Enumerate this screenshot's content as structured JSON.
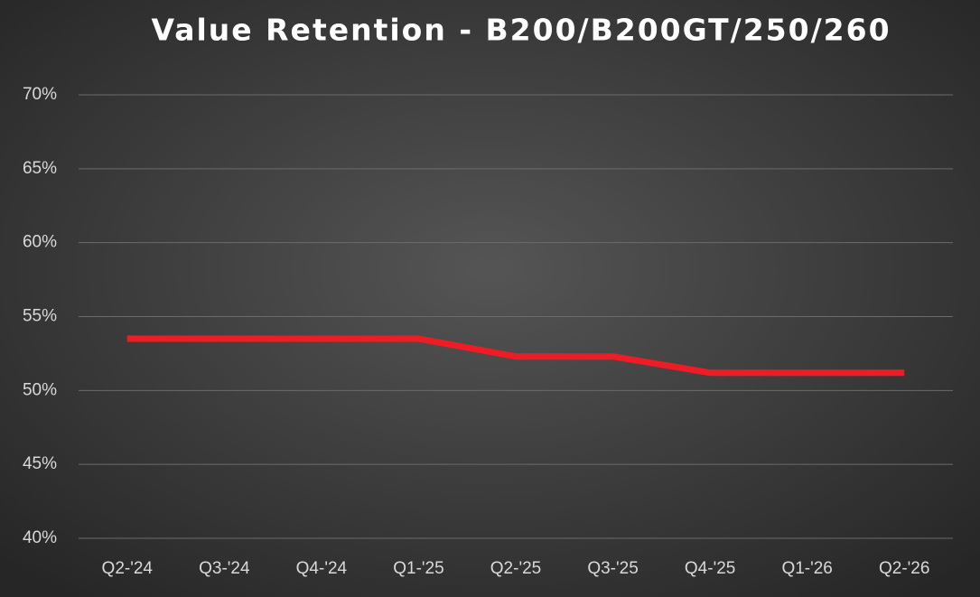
{
  "chart_data": {
    "type": "line",
    "title": "Value Retention - B200/B200GT/250/260",
    "categories": [
      "Q2-'24",
      "Q3-'24",
      "Q4-'24",
      "Q1-'25",
      "Q2-'25",
      "Q3-'25",
      "Q4-'25",
      "Q1-'26",
      "Q2-'26"
    ],
    "series": [
      {
        "name": "Value Retention",
        "color": "#ee1c25",
        "values": [
          53.5,
          53.5,
          53.5,
          53.5,
          52.3,
          52.3,
          51.2,
          51.2,
          51.2
        ]
      }
    ],
    "ylim": [
      40,
      70
    ],
    "yticks": [
      {
        "value": 40,
        "label": "40%"
      },
      {
        "value": 45,
        "label": "45%"
      },
      {
        "value": 50,
        "label": "50%"
      },
      {
        "value": 55,
        "label": "55%"
      },
      {
        "value": 60,
        "label": "60%"
      },
      {
        "value": 65,
        "label": "65%"
      },
      {
        "value": 70,
        "label": "70%"
      }
    ],
    "grid": true
  }
}
